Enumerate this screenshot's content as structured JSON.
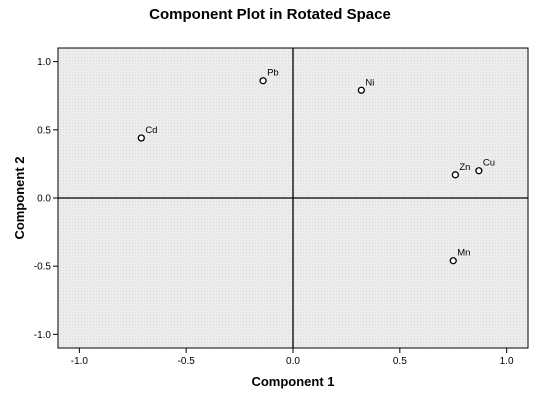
{
  "chart_data": {
    "type": "scatter",
    "title": "Component Plot in Rotated Space",
    "xlabel": "Component 1",
    "ylabel": "Component 2",
    "xlim": [
      -1.1,
      1.1
    ],
    "ylim": [
      -1.1,
      1.1
    ],
    "xticks": [
      -1.0,
      -0.5,
      0.0,
      0.5,
      1.0
    ],
    "yticks": [
      -1.0,
      -0.5,
      0.0,
      0.5,
      1.0
    ],
    "xtick_labels": [
      "-1.0",
      "-0.5",
      "0.0",
      "0.5",
      "1.0"
    ],
    "ytick_labels": [
      "-1.0",
      "-0.5",
      "0.0",
      "0.5",
      "1.0"
    ],
    "grid": false,
    "reference_lines": {
      "x": 0,
      "y": 0
    },
    "background_color": "#f0f0f0",
    "points": [
      {
        "label": "Pb",
        "x": -0.14,
        "y": 0.86
      },
      {
        "label": "Cd",
        "x": -0.71,
        "y": 0.44
      },
      {
        "label": "Ni",
        "x": 0.32,
        "y": 0.79
      },
      {
        "label": "Zn",
        "x": 0.76,
        "y": 0.17
      },
      {
        "label": "Cu",
        "x": 0.87,
        "y": 0.2
      },
      {
        "label": "Mn",
        "x": 0.75,
        "y": -0.46
      }
    ]
  }
}
